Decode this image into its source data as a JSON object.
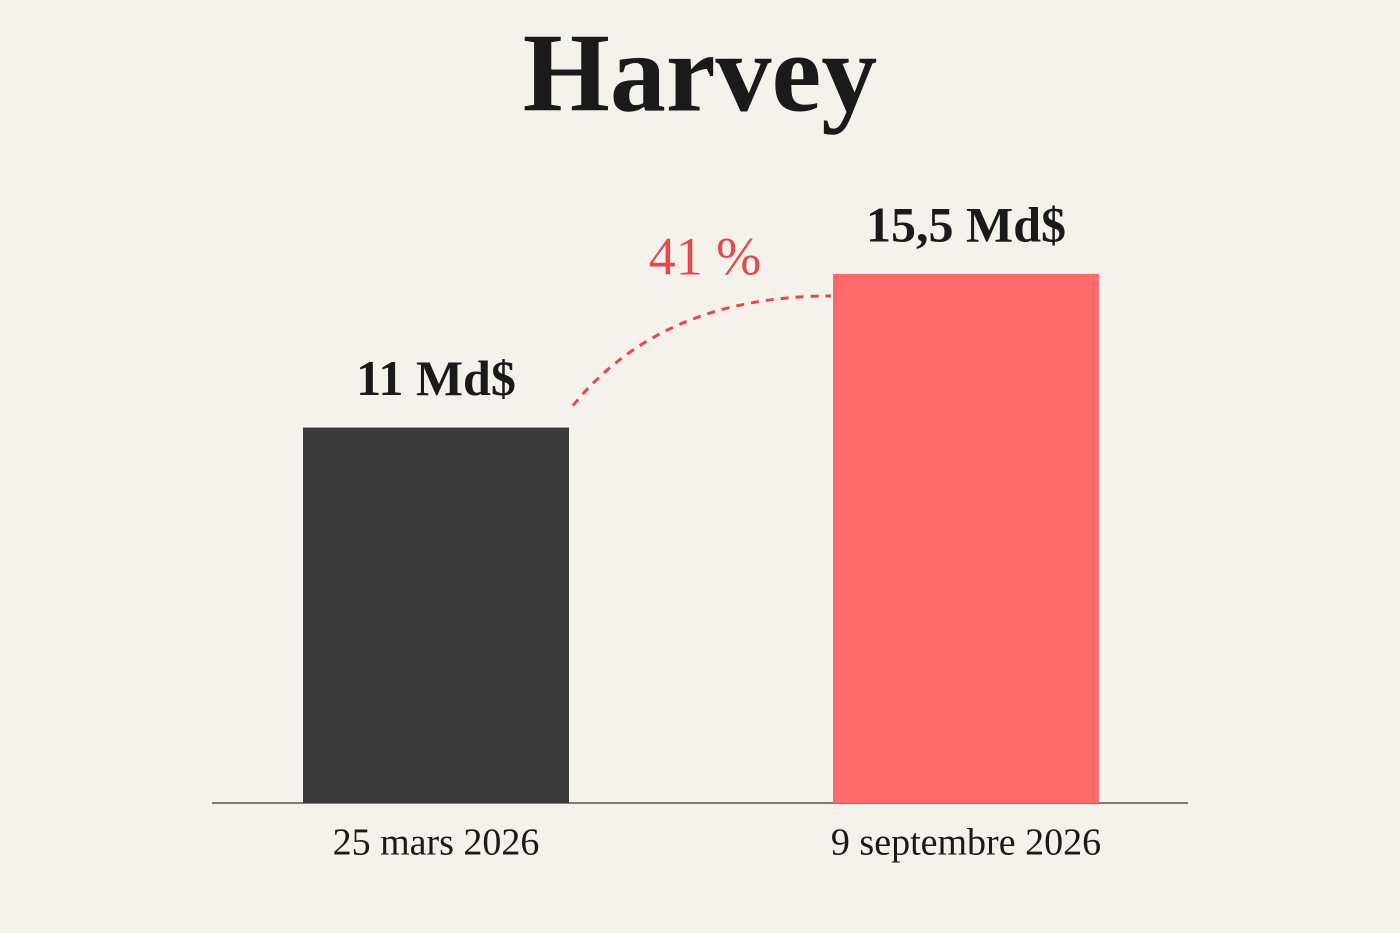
{
  "chart_data": {
    "type": "bar",
    "title": "Harvey",
    "categories": [
      "25 mars 2026",
      "9 septembre 2026"
    ],
    "values": [
      11,
      15.5
    ],
    "value_labels": [
      "11 Md$",
      "15,5 Md$"
    ],
    "colors": [
      "#3a3a3a",
      "#ff6b6b"
    ],
    "annotation": "41 %",
    "annotation_color": "#e5484d"
  }
}
